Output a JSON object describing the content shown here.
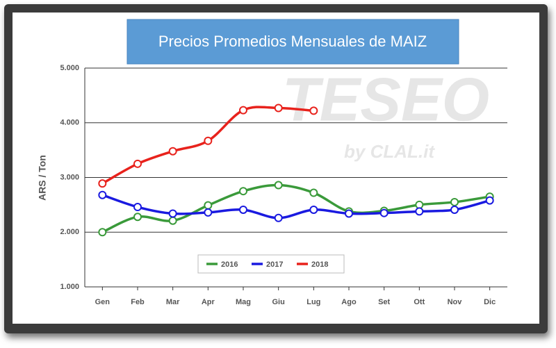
{
  "chart_data": {
    "type": "line",
    "title": "Precios Promedios Mensuales de MAIZ",
    "watermark": [
      "TESEO",
      "by CLAL.it"
    ],
    "ylabel": "ARS / Ton",
    "categories": [
      "Gen",
      "Feb",
      "Mar",
      "Apr",
      "Mag",
      "Giu",
      "Lug",
      "Ago",
      "Set",
      "Ott",
      "Nov",
      "Dic"
    ],
    "series": [
      {
        "name": "2016",
        "color": "#3a9a3a",
        "values": [
          2000,
          2280,
          2210,
          2490,
          2750,
          2860,
          2720,
          2380,
          2390,
          2500,
          2550,
          2650
        ]
      },
      {
        "name": "2017",
        "color": "#1a1ae0",
        "values": [
          2680,
          2460,
          2340,
          2360,
          2410,
          2260,
          2410,
          2340,
          2350,
          2380,
          2410,
          2580
        ]
      },
      {
        "name": "2018",
        "color": "#e8221c",
        "values": [
          2890,
          3250,
          3480,
          3670,
          4230,
          4270,
          4220,
          null,
          null,
          null,
          null,
          null
        ]
      }
    ],
    "ylim": [
      1000,
      5000
    ],
    "yticks": [
      {
        "value": 1000,
        "label": "1.000"
      },
      {
        "value": 2000,
        "label": "2.000"
      },
      {
        "value": 3000,
        "label": "3.000"
      },
      {
        "value": 4000,
        "label": "4.000"
      },
      {
        "value": 5000,
        "label": "5.000"
      }
    ],
    "grid": true,
    "legend": "bottom"
  }
}
